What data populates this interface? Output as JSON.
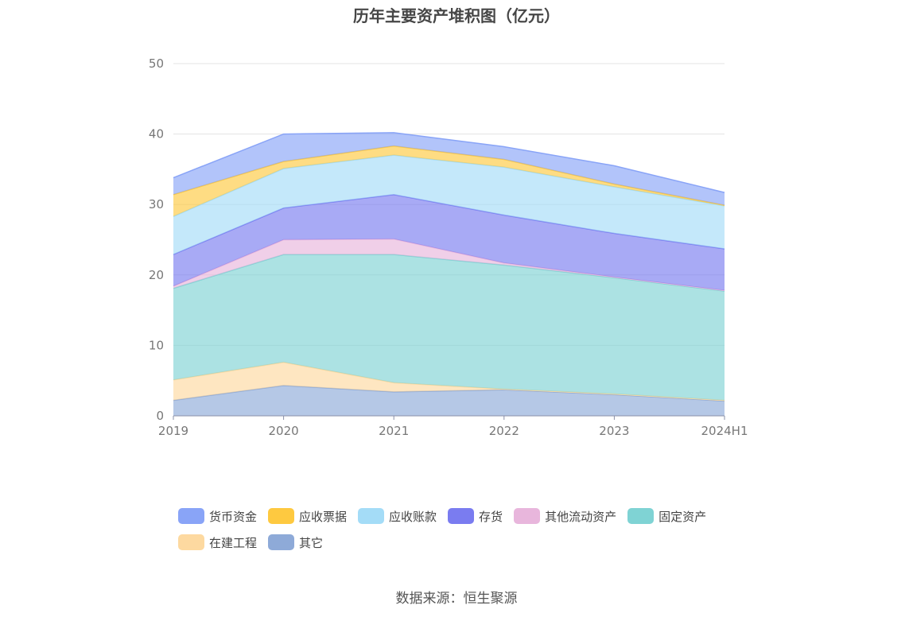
{
  "title": "历年主要资产堆积图（亿元）",
  "source": "数据来源：恒生聚源",
  "chart_data": {
    "type": "area",
    "stacked": true,
    "categories": [
      "2019",
      "2020",
      "2021",
      "2022",
      "2023",
      "2024H1"
    ],
    "ylim": [
      0,
      50
    ],
    "yticks": [
      0,
      10,
      20,
      30,
      40,
      50
    ],
    "grid": true,
    "legend_position": "bottom",
    "series": [
      {
        "name": "其它",
        "color": "#8eaad8",
        "values": [
          2.2,
          4.3,
          3.4,
          3.7,
          3.0,
          2.1
        ]
      },
      {
        "name": "在建工程",
        "color": "#fdd9a0",
        "values": [
          2.9,
          3.3,
          1.3,
          0.1,
          0.1,
          0.1
        ]
      },
      {
        "name": "固定资产",
        "color": "#7fd3d4",
        "values": [
          13.0,
          15.3,
          18.2,
          17.6,
          16.5,
          15.5
        ]
      },
      {
        "name": "其他流动资产",
        "color": "#e8b6dc",
        "values": [
          0.3,
          2.1,
          2.2,
          0.3,
          0.1,
          0.1
        ]
      },
      {
        "name": "存货",
        "color": "#7a7cf0",
        "values": [
          4.5,
          4.5,
          6.3,
          6.8,
          6.2,
          5.9
        ]
      },
      {
        "name": "应收账款",
        "color": "#a4dcf7",
        "values": [
          5.4,
          5.6,
          5.6,
          6.8,
          6.6,
          6.1
        ]
      },
      {
        "name": "应收票据",
        "color": "#fec940",
        "values": [
          3.1,
          1.0,
          1.3,
          1.1,
          0.4,
          0.1
        ]
      },
      {
        "name": "货币资金",
        "color": "#89a4f7",
        "values": [
          2.4,
          3.9,
          1.9,
          1.8,
          2.6,
          1.8
        ]
      }
    ],
    "legend_order": [
      "货币资金",
      "应收票据",
      "应收账款",
      "存货",
      "其他流动资产",
      "固定资产",
      "在建工程",
      "其它"
    ]
  }
}
